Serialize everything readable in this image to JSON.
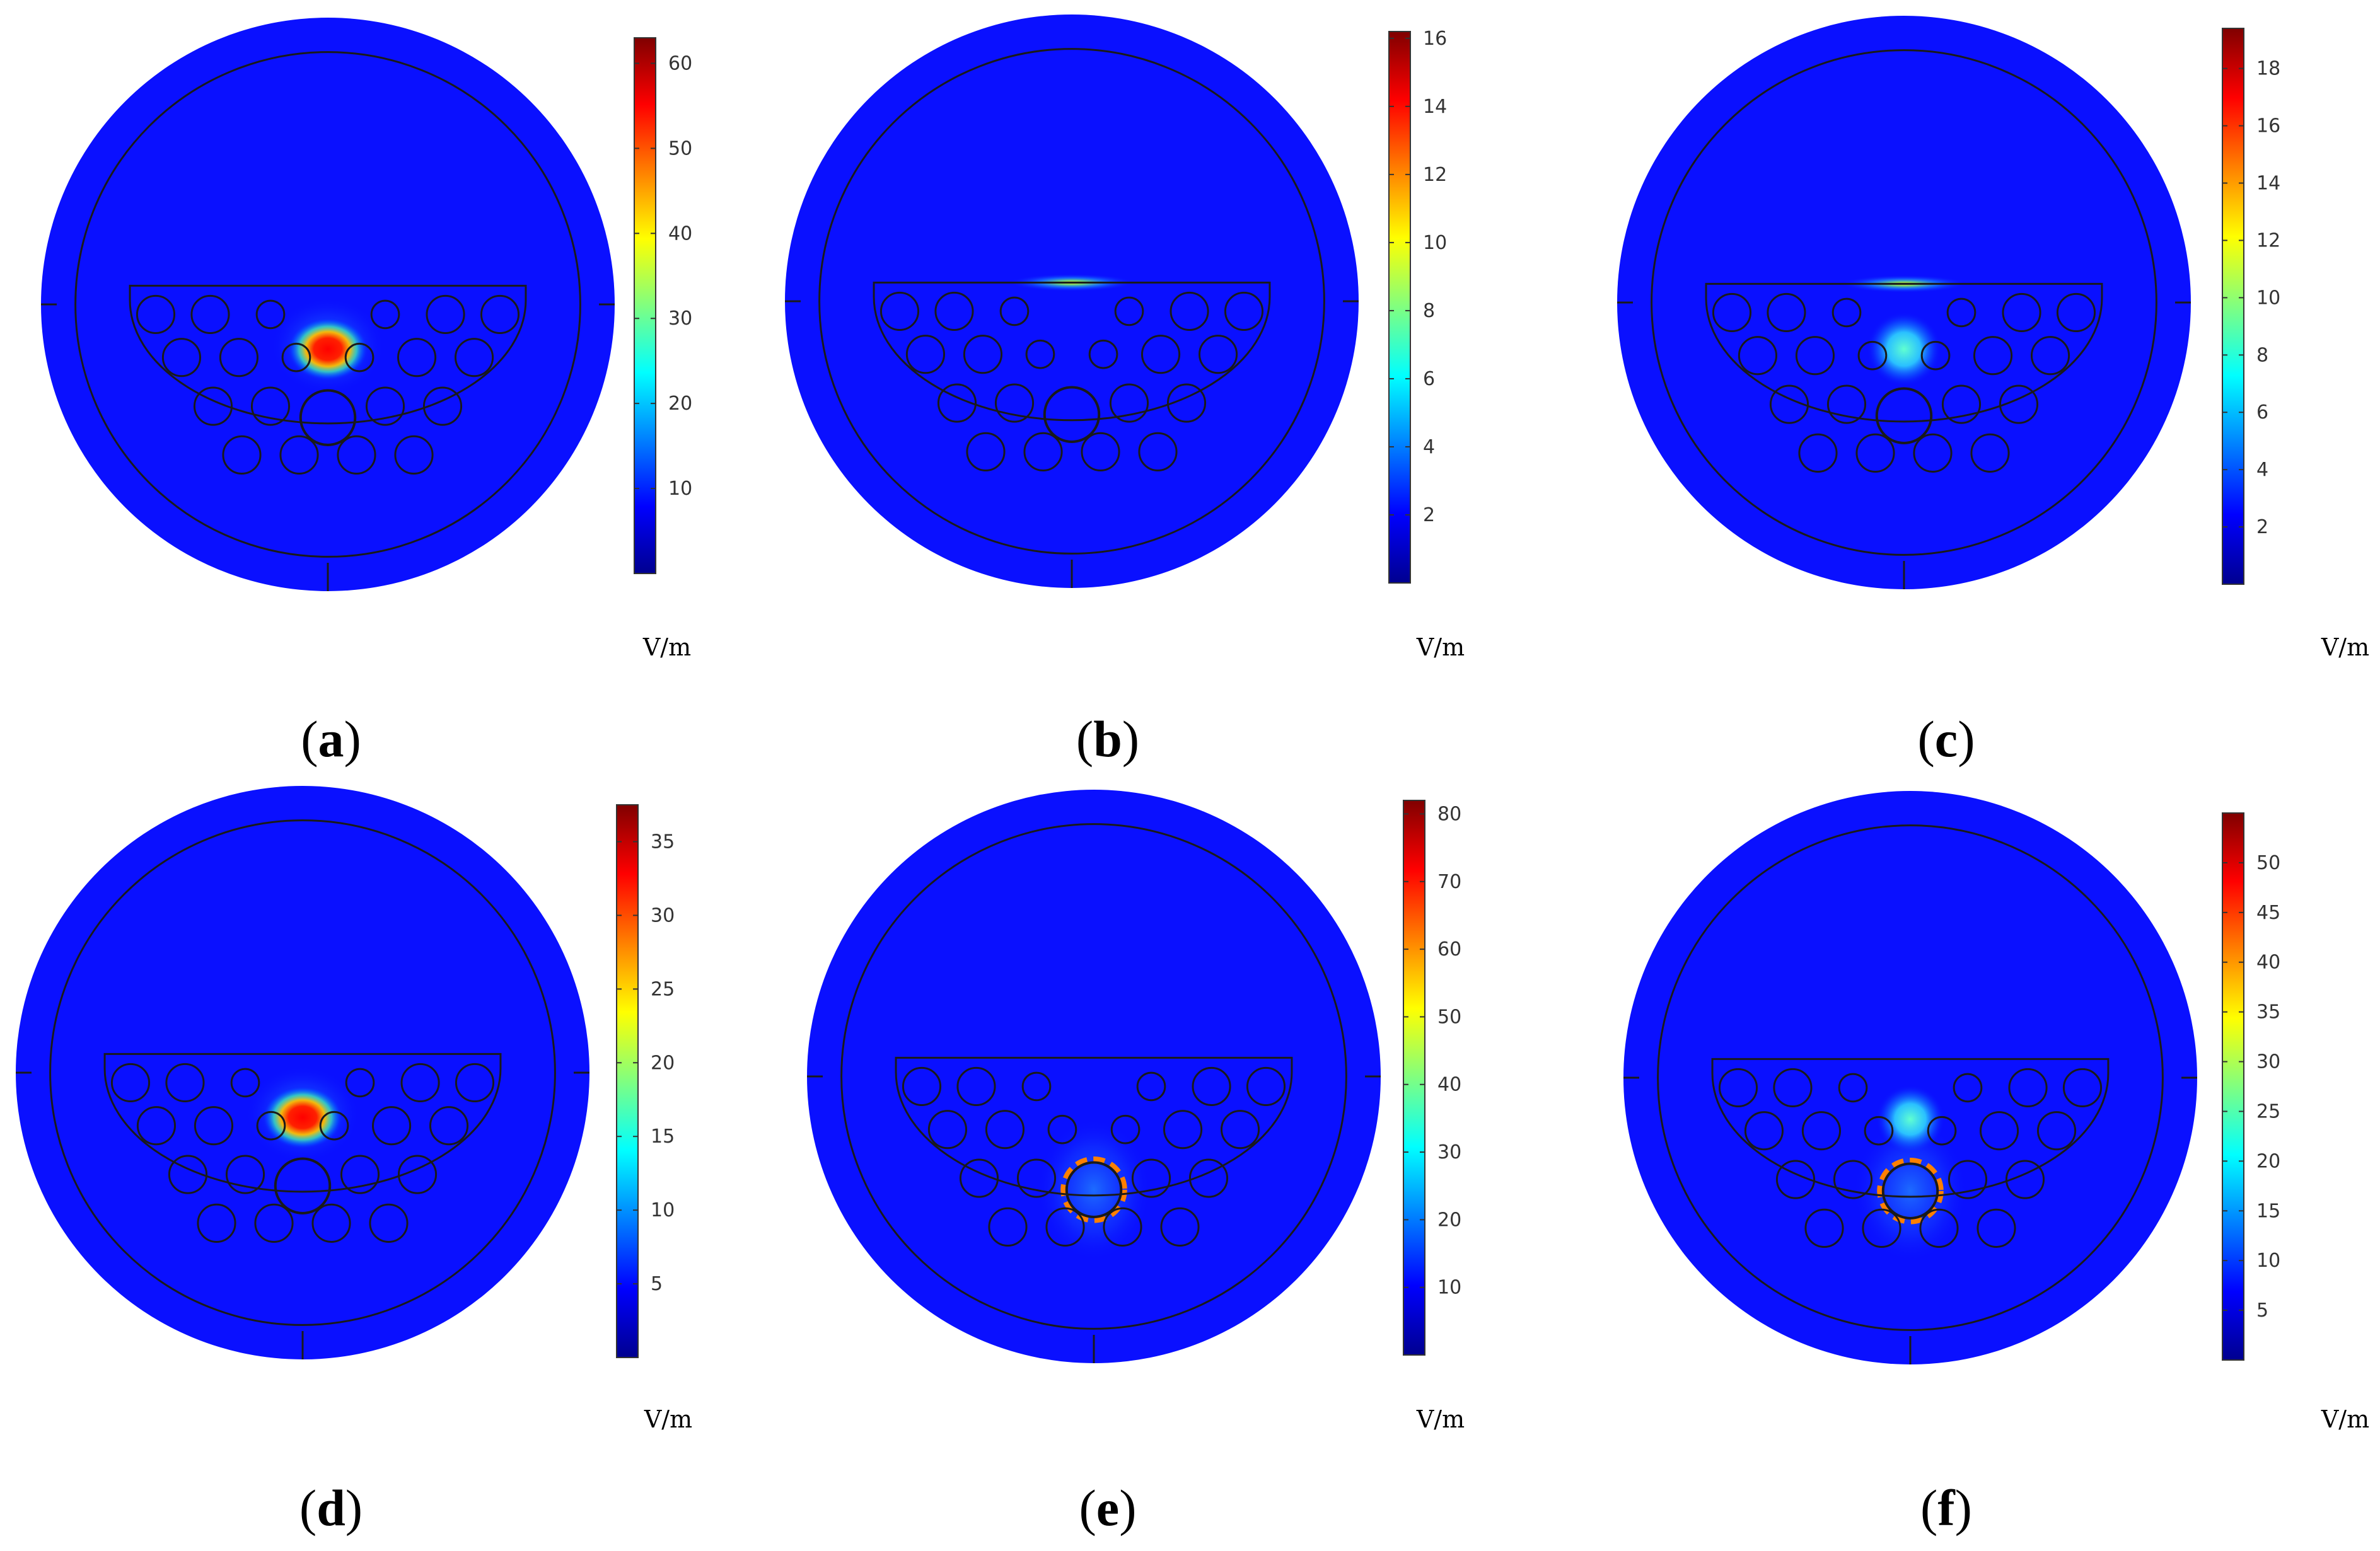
{
  "figure": {
    "panels": [
      {
        "id": "a",
        "label": "a",
        "unit": "V/m",
        "colorbar_max": 63,
        "ticks": [
          10,
          20,
          30,
          40,
          50,
          60
        ],
        "field": "core-spot",
        "hot_spot_peak_fraction": 1.0
      },
      {
        "id": "b",
        "label": "b",
        "unit": "V/m",
        "colorbar_max": 16.2,
        "ticks": [
          2,
          4,
          6,
          8,
          10,
          12,
          14,
          16
        ],
        "field": "surface-line",
        "hot_spot_peak_fraction": 1.0
      },
      {
        "id": "c",
        "label": "c",
        "unit": "V/m",
        "colorbar_max": 19.4,
        "ticks": [
          2,
          4,
          6,
          8,
          10,
          12,
          14,
          16,
          18
        ],
        "field": "surface-line-plus-core",
        "hot_spot_peak_fraction": 1.0
      },
      {
        "id": "d",
        "label": "d",
        "unit": "V/m",
        "colorbar_max": 37.5,
        "ticks": [
          5,
          10,
          15,
          20,
          25,
          30,
          35
        ],
        "field": "core-spot",
        "hot_spot_peak_fraction": 1.0
      },
      {
        "id": "e",
        "label": "e",
        "unit": "V/m",
        "colorbar_max": 82,
        "ticks": [
          10,
          20,
          30,
          40,
          50,
          60,
          70,
          80
        ],
        "field": "center-ring",
        "hot_spot_peak_fraction": 1.0
      },
      {
        "id": "f",
        "label": "f",
        "unit": "V/m",
        "colorbar_max": 55,
        "ticks": [
          5,
          10,
          15,
          20,
          25,
          30,
          35,
          40,
          45,
          50
        ],
        "field": "center-ring-plus-core",
        "hot_spot_peak_fraction": 1.0
      }
    ],
    "colormap": [
      "#00008f",
      "#0000ff",
      "#0080ff",
      "#00ffff",
      "#80ff80",
      "#ffff00",
      "#ff8000",
      "#ff0000",
      "#800000"
    ],
    "background_color": "#0a10ff",
    "line_color": "#1a1a1a"
  }
}
